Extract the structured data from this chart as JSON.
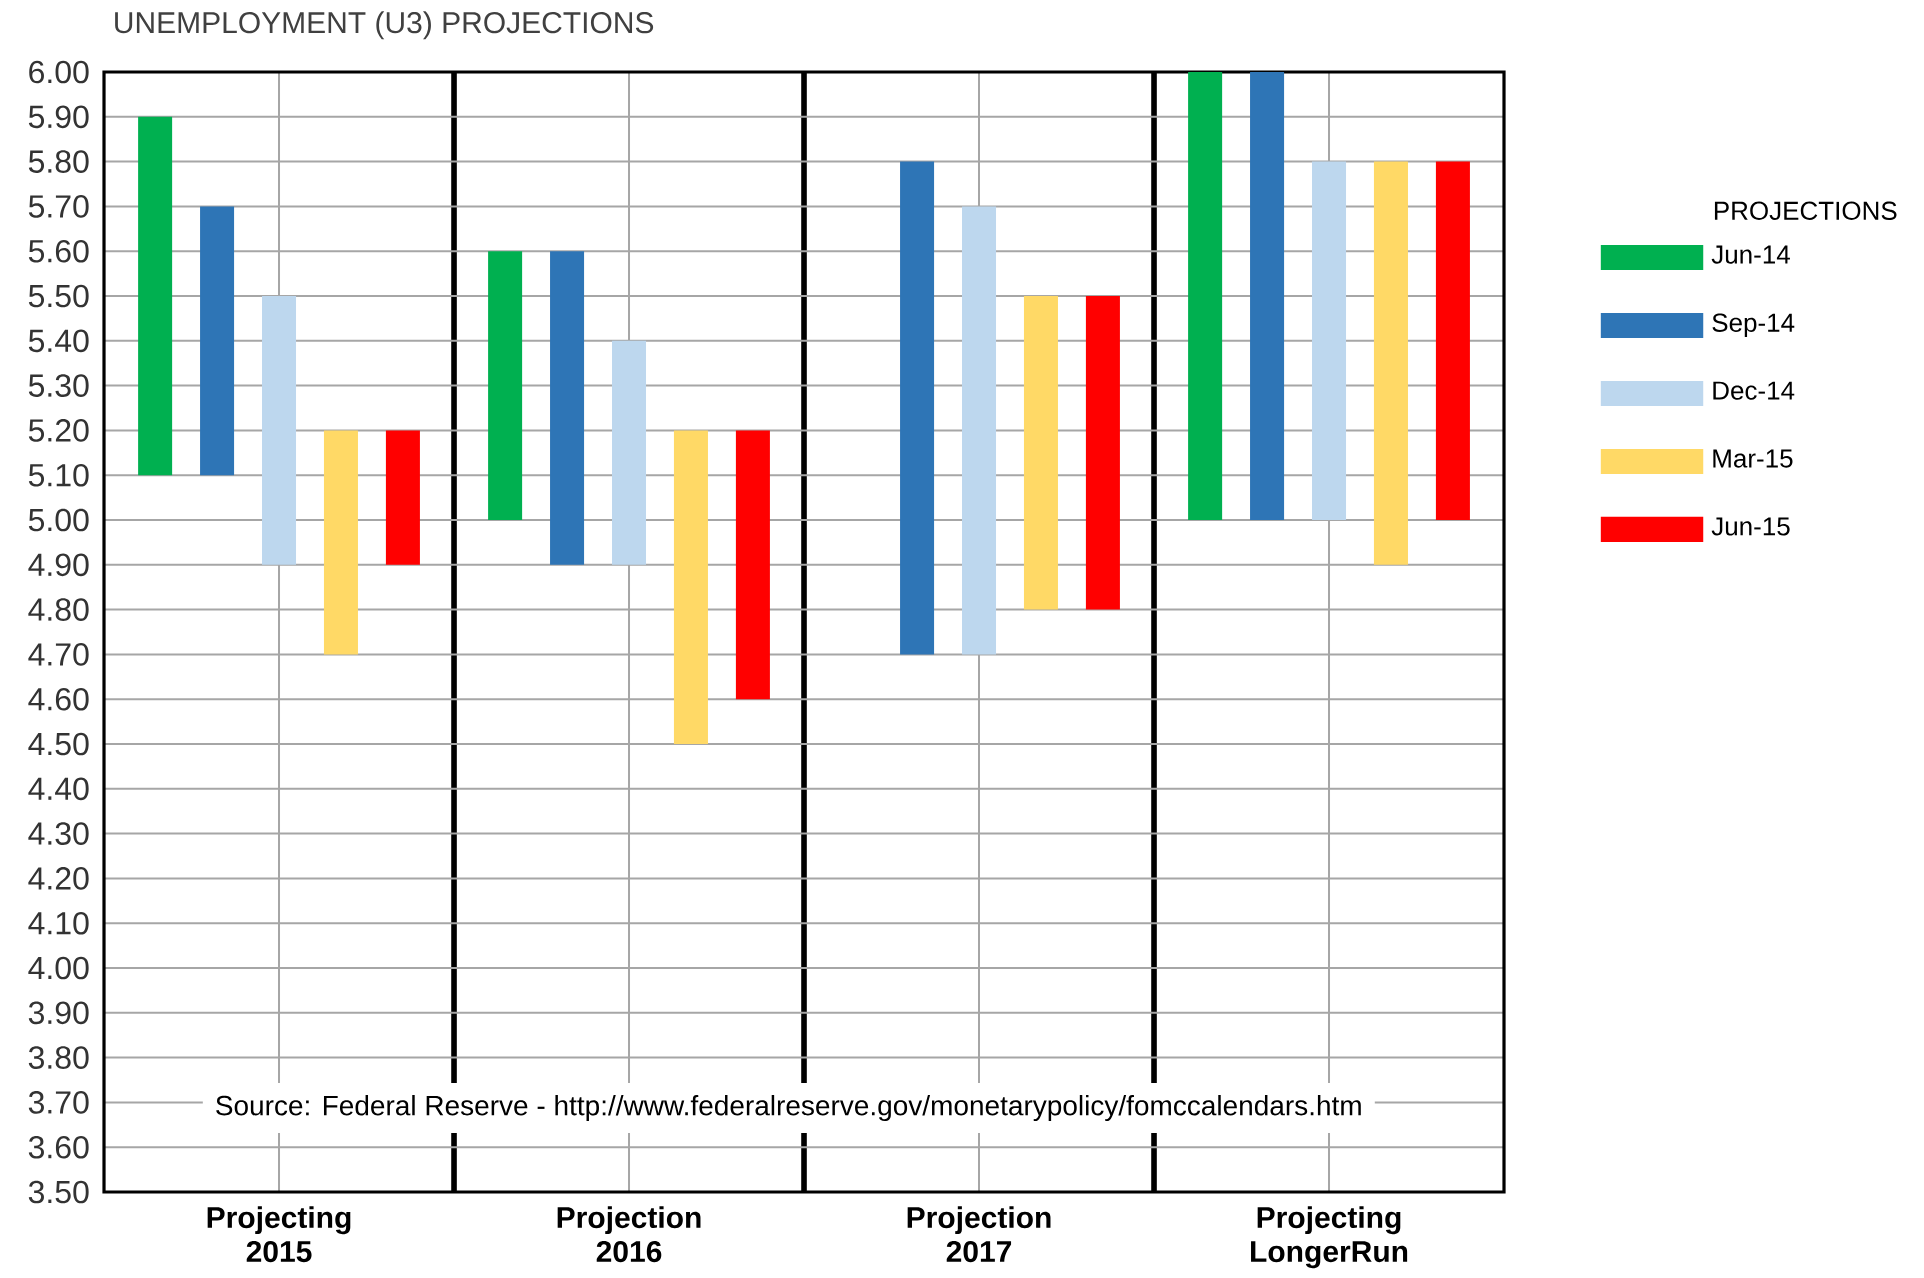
{
  "chart_data": {
    "type": "bar",
    "title": "UNEMPLOYMENT (U3) PROJECTIONS",
    "categories": [
      "Projecting 2015",
      "Projection 2016",
      "Projection 2017",
      "Projecting LongerRun"
    ],
    "series": [
      {
        "name": "Jun-14",
        "color": "#00b050",
        "base": [
          5.1,
          5.0,
          null,
          5.0
        ],
        "values": [
          0.8,
          0.6,
          null,
          1.0
        ]
      },
      {
        "name": "Sep-14",
        "color": "#2e75b6",
        "base": [
          5.1,
          4.9,
          4.7,
          5.0
        ],
        "values": [
          0.6,
          0.7,
          1.1,
          1.0
        ]
      },
      {
        "name": "Dec-14",
        "color": "#bdd7ee",
        "base": [
          4.9,
          4.9,
          4.7,
          5.0
        ],
        "values": [
          0.6,
          0.5,
          1.0,
          0.8
        ]
      },
      {
        "name": "Mar-15",
        "color": "#ffd966",
        "base": [
          4.7,
          4.5,
          4.8,
          4.9
        ],
        "values": [
          0.5,
          0.7,
          0.7,
          0.9
        ]
      },
      {
        "name": "Jun-15",
        "color": "#ff0000",
        "base": [
          4.9,
          4.6,
          4.8,
          5.0
        ],
        "values": [
          0.3,
          0.6,
          0.7,
          0.8
        ]
      }
    ],
    "ylim": [
      3.5,
      6.0
    ],
    "yticks": [
      {
        "value": 3.5,
        "label": "3.50"
      },
      {
        "value": 3.6,
        "label": "3.60"
      },
      {
        "value": 3.7,
        "label": "3.70"
      },
      {
        "value": 3.8,
        "label": "3.80"
      },
      {
        "value": 3.9,
        "label": "3.90"
      },
      {
        "value": 4.0,
        "label": "4.00"
      },
      {
        "value": 4.1,
        "label": "4.10"
      },
      {
        "value": 4.2,
        "label": "4.20"
      },
      {
        "value": 4.3,
        "label": "4.30"
      },
      {
        "value": 4.4,
        "label": "4.40"
      },
      {
        "value": 4.5,
        "label": "4.50"
      },
      {
        "value": 4.6,
        "label": "4.60"
      },
      {
        "value": 4.7,
        "label": "4.70"
      },
      {
        "value": 4.8,
        "label": "4.80"
      },
      {
        "value": 4.9,
        "label": "4.90"
      },
      {
        "value": 5.0,
        "label": "5.00"
      },
      {
        "value": 5.1,
        "label": "5.10"
      },
      {
        "value": 5.2,
        "label": "5.20"
      },
      {
        "value": 5.3,
        "label": "5.30"
      },
      {
        "value": 5.4,
        "label": "5.40"
      },
      {
        "value": 5.5,
        "label": "5.50"
      },
      {
        "value": 5.6,
        "label": "5.60"
      },
      {
        "value": 5.7,
        "label": "5.70"
      },
      {
        "value": 5.8,
        "label": "5.80"
      },
      {
        "value": 5.9,
        "label": "5.90"
      },
      {
        "value": 6.0,
        "label": "6.00"
      }
    ],
    "grid": true,
    "legend": "right",
    "legend_title": "PROJECTIONS",
    "annotations": [
      "Source: Federal Reserve - http://www.federalreserve.gov/monetarypolicy/fomccalendars.htm"
    ]
  }
}
